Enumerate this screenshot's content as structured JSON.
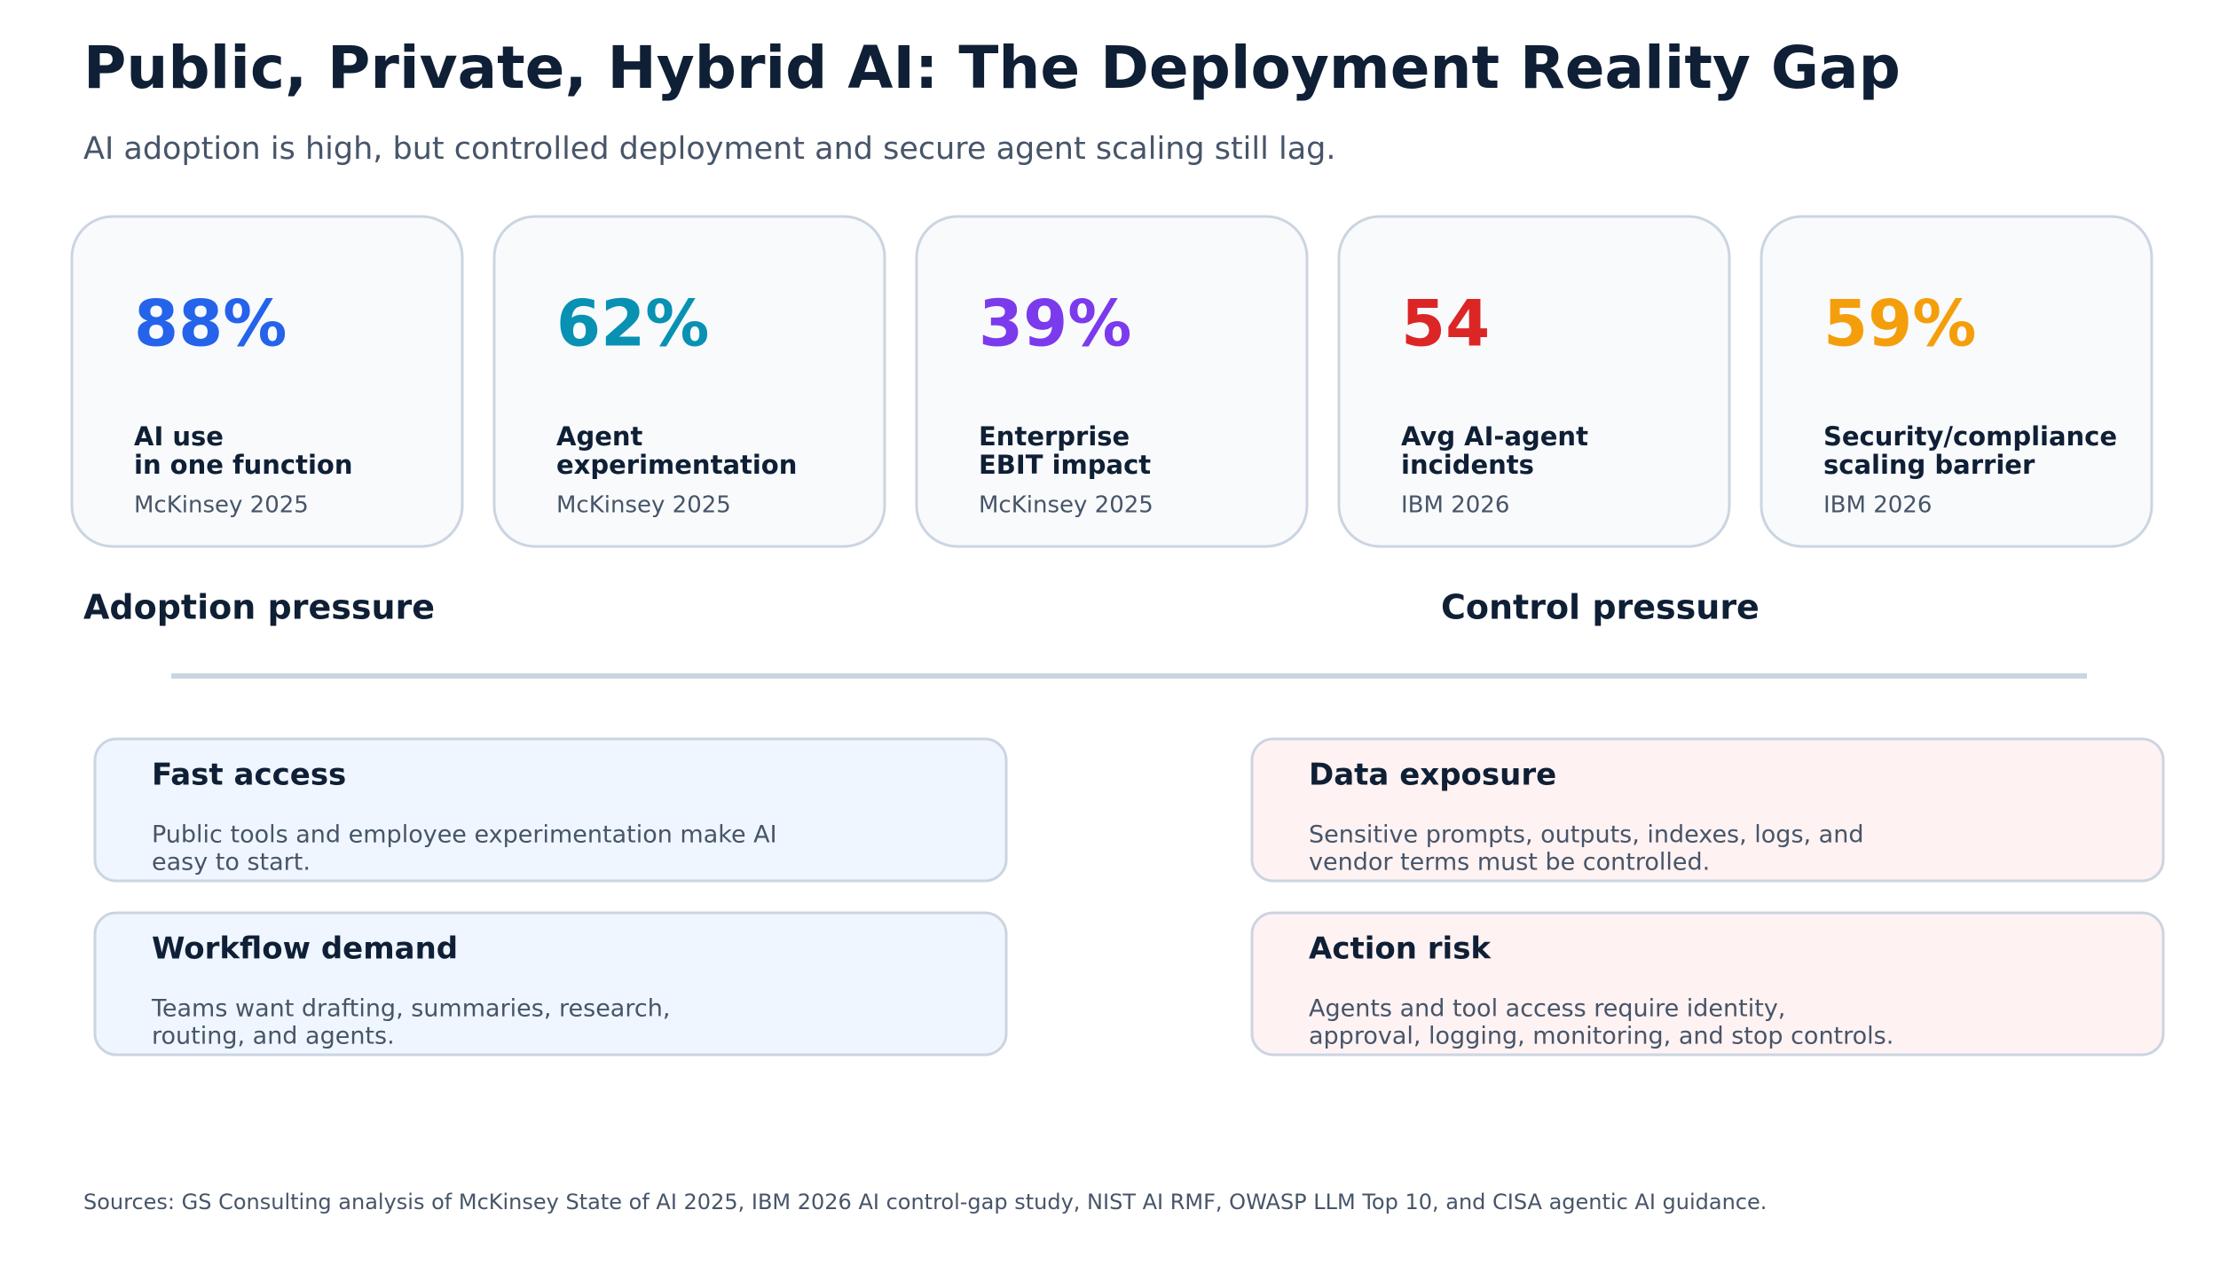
{
  "header": {
    "title": "Public, Private, Hybrid AI: The Deployment Reality Gap",
    "subtitle": "AI adoption is high, but controlled deployment and secure agent scaling still lag."
  },
  "stats": [
    {
      "value": "88%",
      "color": "#2563eb",
      "label": [
        "AI use",
        "in one function"
      ],
      "source": "McKinsey 2025"
    },
    {
      "value": "62%",
      "color": "#0891b2",
      "label": [
        "Agent",
        "experimentation"
      ],
      "source": "McKinsey 2025"
    },
    {
      "value": "39%",
      "color": "#7c3aed",
      "label": [
        "Enterprise",
        "EBIT impact"
      ],
      "source": "McKinsey 2025"
    },
    {
      "value": "54",
      "color": "#dc2626",
      "label": [
        "Avg AI-agent",
        "incidents"
      ],
      "source": "IBM 2026"
    },
    {
      "value": "59%",
      "color": "#f59e0b",
      "label": [
        "Security/compliance",
        "scaling barrier"
      ],
      "source": "IBM 2026"
    }
  ],
  "columns": [
    {
      "heading": "Adoption pressure",
      "fill": "#eff6ff",
      "items": [
        {
          "title": "Fast access",
          "text": [
            "Public tools and employee experimentation make AI",
            "easy to start."
          ]
        },
        {
          "title": "Workflow demand",
          "text": [
            "Teams want drafting, summaries, research,",
            "routing, and agents."
          ]
        }
      ]
    },
    {
      "heading": "Control pressure",
      "fill": "#fef2f2",
      "items": [
        {
          "title": "Data exposure",
          "text": [
            "Sensitive prompts, outputs, indexes, logs, and",
            "vendor terms must be controlled."
          ]
        },
        {
          "title": "Action risk",
          "text": [
            "Agents and tool access require identity,",
            "approval, logging, monitoring, and stop controls."
          ]
        }
      ]
    }
  ],
  "footer": "Sources: GS Consulting analysis of McKinsey State of AI 2025, IBM 2026 AI control-gap study, NIST AI RMF, OWASP LLM Top 10, and CISA agentic AI guidance."
}
